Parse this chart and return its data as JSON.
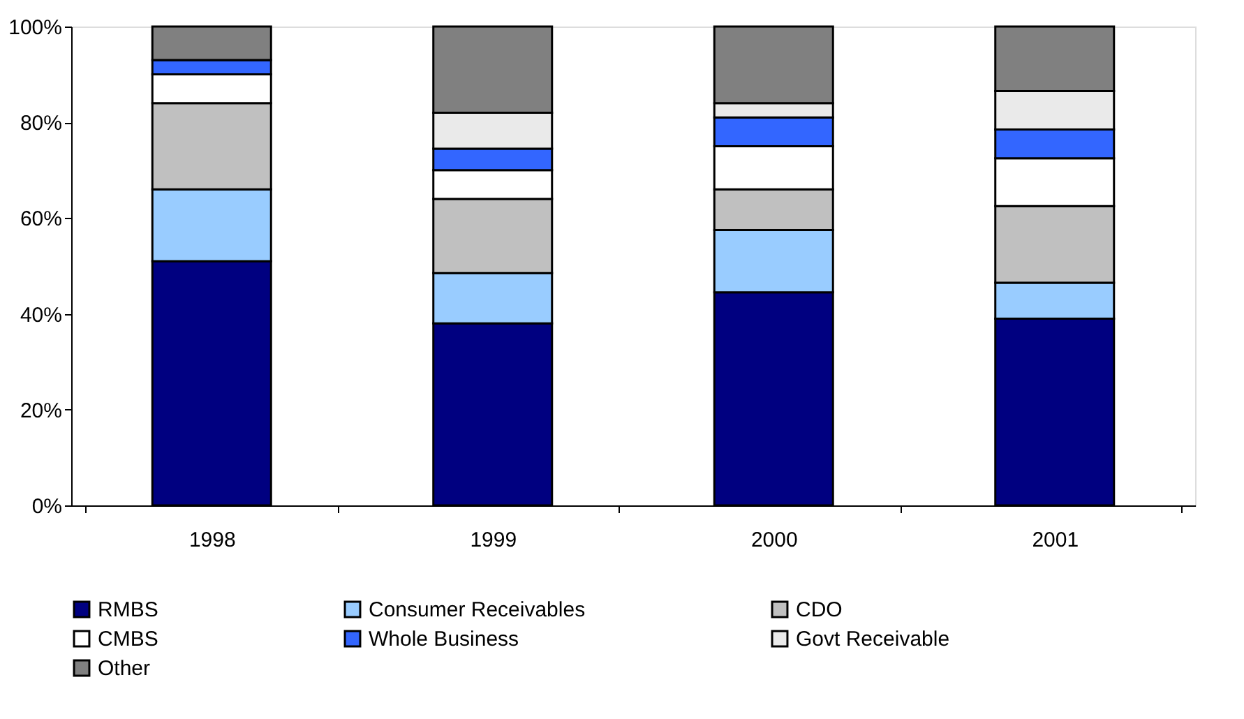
{
  "chart_data": {
    "type": "bar",
    "stacked": true,
    "categories": [
      "1998",
      "1999",
      "2000",
      "2001"
    ],
    "series": [
      {
        "name": "RMBS",
        "color": "#000080",
        "values": [
          51,
          38,
          44.5,
          39
        ]
      },
      {
        "name": "Consumer Receivables",
        "color": "#99ccff",
        "values": [
          15,
          10.5,
          13,
          7.5
        ]
      },
      {
        "name": "CDO",
        "color": "#c0c0c0",
        "values": [
          18,
          15.5,
          8.5,
          16
        ]
      },
      {
        "name": "CMBS",
        "color": "#ffffff",
        "values": [
          6,
          6,
          9,
          10
        ]
      },
      {
        "name": "Whole Business",
        "color": "#3366ff",
        "values": [
          3,
          4.5,
          6,
          6
        ]
      },
      {
        "name": "Govt Receivable",
        "color": "#eaeaea",
        "values": [
          0,
          7.5,
          3,
          8
        ]
      },
      {
        "name": "Other",
        "color": "#808080",
        "values": [
          7,
          18,
          16,
          13.5
        ]
      }
    ],
    "ylim": [
      0,
      100
    ],
    "yticks": [
      {
        "value": 0,
        "label": "0%"
      },
      {
        "value": 20,
        "label": "20%"
      },
      {
        "value": 40,
        "label": "40%"
      },
      {
        "value": 60,
        "label": "60%"
      },
      {
        "value": 80,
        "label": "80%"
      },
      {
        "value": 100,
        "label": "100%"
      }
    ],
    "grid": false,
    "legend": "bottom"
  }
}
